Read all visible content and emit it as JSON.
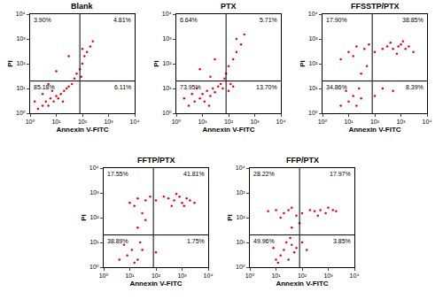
{
  "chart_data": [
    {
      "type": "scatter",
      "title": "Blank",
      "x_label": "Annexin V-FITC",
      "y_label": "PI",
      "log": true,
      "color": "#e8000b",
      "marker": "dot",
      "xlim": [
        1,
        10000
      ],
      "ylim": [
        1,
        10000
      ],
      "xticks": [
        {
          "value": 1,
          "label": "10⁰"
        },
        {
          "value": 10,
          "label": "10¹"
        },
        {
          "value": 100,
          "label": "10²"
        },
        {
          "value": 1000,
          "label": "10³"
        },
        {
          "value": 10000,
          "label": "10⁴"
        }
      ],
      "yticks": [
        {
          "value": 1,
          "label": "10⁰"
        },
        {
          "value": 10,
          "label": "10¹"
        },
        {
          "value": 100,
          "label": "10²"
        },
        {
          "value": 1000,
          "label": "10³"
        },
        {
          "value": 10000,
          "label": "10⁴"
        }
      ],
      "gate": {
        "x": 80,
        "y": 20
      },
      "quadrant_percent": [
        {
          "value": 3.9,
          "label": "3.90%"
        },
        {
          "value": 4.81,
          "label": "4.81%"
        },
        {
          "value": 85.18,
          "label": "85.18%"
        },
        {
          "value": 6.11,
          "label": "6.11%"
        }
      ],
      "x": [
        2,
        3,
        4,
        5,
        6,
        8,
        10,
        12,
        15,
        7,
        20,
        25,
        3,
        1.5,
        30,
        40,
        18,
        50,
        60,
        80,
        100,
        120,
        150,
        200,
        250,
        100,
        90,
        30,
        10,
        5
      ],
      "values": [
        1.5,
        2,
        3,
        2,
        4,
        3,
        5,
        4,
        6,
        8,
        8,
        10,
        6,
        3,
        12,
        15,
        3,
        25,
        40,
        60,
        100,
        200,
        300,
        500,
        800,
        400,
        30,
        200,
        50,
        15
      ]
    },
    {
      "type": "scatter",
      "title": "PTX",
      "x_label": "Annexin V-FITC",
      "y_label": "PI",
      "log": true,
      "color": "#e8000b",
      "marker": "dot",
      "xlim": [
        1,
        10000
      ],
      "ylim": [
        1,
        10000
      ],
      "xticks": [
        {
          "value": 1,
          "label": "10⁰"
        },
        {
          "value": 10,
          "label": "10¹"
        },
        {
          "value": 100,
          "label": "10²"
        },
        {
          "value": 1000,
          "label": "10³"
        },
        {
          "value": 10000,
          "label": "10⁴"
        }
      ],
      "yticks": [
        {
          "value": 1,
          "label": "10⁰"
        },
        {
          "value": 10,
          "label": "10¹"
        },
        {
          "value": 100,
          "label": "10²"
        },
        {
          "value": 1000,
          "label": "10³"
        },
        {
          "value": 10000,
          "label": "10⁴"
        }
      ],
      "gate": {
        "x": 80,
        "y": 20
      },
      "quadrant_percent": [
        {
          "value": 6.64,
          "label": "6.64%"
        },
        {
          "value": 5.71,
          "label": "5.71%"
        },
        {
          "value": 73.95,
          "label": "73.95%"
        },
        {
          "value": 13.7,
          "label": "13.70%"
        }
      ],
      "x": [
        3,
        5,
        8,
        10,
        12,
        15,
        20,
        25,
        30,
        40,
        6,
        4,
        50,
        60,
        100,
        120,
        150,
        80,
        100,
        150,
        200,
        300,
        200,
        400,
        30,
        8,
        20,
        70,
        2,
        18
      ],
      "values": [
        2,
        3,
        4,
        6,
        3,
        8,
        5,
        10,
        7,
        12,
        10,
        6,
        15,
        10,
        8,
        15,
        12,
        40,
        80,
        150,
        300,
        600,
        1000,
        1500,
        150,
        60,
        30,
        25,
        4,
        2
      ]
    },
    {
      "type": "scatter",
      "title": "FFSSTP/PTX",
      "x_label": "Annexin V-FITC",
      "y_label": "PI",
      "log": true,
      "color": "#e8000b",
      "marker": "dot",
      "xlim": [
        1,
        10000
      ],
      "ylim": [
        1,
        10000
      ],
      "xticks": [
        {
          "value": 1,
          "label": "10⁰"
        },
        {
          "value": 10,
          "label": "10¹"
        },
        {
          "value": 100,
          "label": "10²"
        },
        {
          "value": 1000,
          "label": "10³"
        },
        {
          "value": 10000,
          "label": "10⁴"
        }
      ],
      "yticks": [
        {
          "value": 1,
          "label": "10⁰"
        },
        {
          "value": 10,
          "label": "10¹"
        },
        {
          "value": 100,
          "label": "10²"
        },
        {
          "value": 1000,
          "label": "10³"
        },
        {
          "value": 10000,
          "label": "10⁴"
        }
      ],
      "gate": {
        "x": 80,
        "y": 20
      },
      "quadrant_percent": [
        {
          "value": 17.9,
          "label": "17.90%"
        },
        {
          "value": 38.85,
          "label": "38.85%"
        },
        {
          "value": 34.86,
          "label": "34.86%"
        },
        {
          "value": 8.39,
          "label": "8.39%"
        }
      ],
      "x": [
        100,
        200,
        300,
        500,
        800,
        1000,
        1500,
        2000,
        3000,
        700,
        400,
        1200,
        10,
        20,
        40,
        15,
        5,
        60,
        5,
        10,
        15,
        20,
        8,
        25,
        30,
        100,
        200,
        500,
        50,
        30
      ],
      "values": [
        300,
        400,
        500,
        400,
        500,
        600,
        400,
        500,
        300,
        250,
        700,
        800,
        300,
        500,
        400,
        200,
        150,
        600,
        2,
        3,
        5,
        2,
        8,
        10,
        4,
        5,
        10,
        8,
        80,
        40
      ]
    },
    {
      "type": "scatter",
      "title": "FFTP/PTX",
      "x_label": "Annexin V-FITC",
      "y_label": "PI",
      "log": true,
      "color": "#e8000b",
      "marker": "dot",
      "xlim": [
        1,
        10000
      ],
      "ylim": [
        1,
        10000
      ],
      "xticks": [
        {
          "value": 1,
          "label": "10⁰"
        },
        {
          "value": 10,
          "label": "10¹"
        },
        {
          "value": 100,
          "label": "10²"
        },
        {
          "value": 1000,
          "label": "10³"
        },
        {
          "value": 10000,
          "label": "10⁴"
        }
      ],
      "yticks": [
        {
          "value": 1,
          "label": "10⁰"
        },
        {
          "value": 10,
          "label": "10¹"
        },
        {
          "value": 100,
          "label": "10²"
        },
        {
          "value": 1000,
          "label": "10³"
        },
        {
          "value": 10000,
          "label": "10⁴"
        }
      ],
      "gate": {
        "x": 80,
        "y": 20
      },
      "quadrant_percent": [
        {
          "value": 17.55,
          "label": "17.55%"
        },
        {
          "value": 41.81,
          "label": "41.81%"
        },
        {
          "value": 38.89,
          "label": "38.89%"
        },
        {
          "value": 1.75,
          "label": "1.75%"
        }
      ],
      "x": [
        100,
        200,
        300,
        500,
        800,
        1000,
        1500,
        2000,
        3000,
        600,
        400,
        1200,
        10,
        20,
        40,
        15,
        30,
        60,
        4,
        8,
        12,
        20,
        6,
        25,
        15,
        30,
        100,
        40,
        20
      ],
      "values": [
        500,
        700,
        600,
        500,
        700,
        400,
        600,
        500,
        400,
        900,
        300,
        300,
        400,
        600,
        500,
        300,
        150,
        700,
        2,
        3,
        5,
        2,
        8,
        10,
        1.5,
        5,
        4,
        80,
        40
      ]
    },
    {
      "type": "scatter",
      "title": "FFP/PTX",
      "x_label": "Annexin V-FITC",
      "y_label": "PI",
      "log": true,
      "color": "#e8000b",
      "marker": "dot",
      "xlim": [
        1,
        10000
      ],
      "ylim": [
        1,
        10000
      ],
      "xticks": [
        {
          "value": 1,
          "label": "10⁰"
        },
        {
          "value": 10,
          "label": "10¹"
        },
        {
          "value": 100,
          "label": "10²"
        },
        {
          "value": 1000,
          "label": "10³"
        },
        {
          "value": 10000,
          "label": "10⁴"
        }
      ],
      "yticks": [
        {
          "value": 1,
          "label": "10⁰"
        },
        {
          "value": 10,
          "label": "10¹"
        },
        {
          "value": 100,
          "label": "10²"
        },
        {
          "value": 1000,
          "label": "10³"
        },
        {
          "value": 10000,
          "label": "10⁴"
        }
      ],
      "gate": {
        "x": 80,
        "y": 20
      },
      "quadrant_percent": [
        {
          "value": 28.22,
          "label": "28.22%"
        },
        {
          "value": 17.97,
          "label": "17.97%"
        },
        {
          "value": 49.96,
          "label": "49.96%"
        },
        {
          "value": 3.85,
          "label": "3.85%"
        }
      ],
      "x": [
        100,
        200,
        300,
        500,
        800,
        1000,
        1500,
        2000,
        400,
        10,
        20,
        40,
        15,
        30,
        5,
        60,
        10,
        15,
        20,
        30,
        40,
        25,
        50,
        60,
        12,
        35,
        8,
        100,
        150,
        40,
        80
      ],
      "values": [
        150,
        200,
        180,
        200,
        150,
        250,
        200,
        180,
        120,
        200,
        150,
        250,
        100,
        200,
        180,
        120,
        2,
        3,
        5,
        2,
        8,
        10,
        4,
        6,
        1.5,
        15,
        6,
        10,
        5,
        40,
        60
      ]
    }
  ]
}
